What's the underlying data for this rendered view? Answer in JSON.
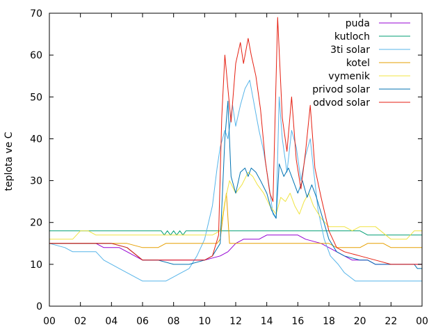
{
  "chart_data": {
    "type": "line",
    "title": "",
    "xlabel": "",
    "ylabel": "teplota ve C",
    "xlim": [
      0,
      24
    ],
    "ylim": [
      0,
      70
    ],
    "x_tick_labels": [
      "00",
      "02",
      "04",
      "06",
      "08",
      "10",
      "12",
      "14",
      "16",
      "18",
      "20",
      "22",
      "00"
    ],
    "y_ticks": [
      0,
      10,
      20,
      30,
      40,
      50,
      60,
      70
    ],
    "grid": false,
    "legend_position": "top-right",
    "series": [
      {
        "name": "puda",
        "color": "#9400d3",
        "points": [
          [
            0,
            15
          ],
          [
            3,
            15
          ],
          [
            3.5,
            14
          ],
          [
            4.5,
            14
          ],
          [
            5,
            13
          ],
          [
            5.5,
            12
          ],
          [
            6,
            11
          ],
          [
            9,
            11
          ],
          [
            10,
            11
          ],
          [
            11,
            12
          ],
          [
            11.5,
            13
          ],
          [
            12,
            15
          ],
          [
            12.5,
            16
          ],
          [
            13.5,
            16
          ],
          [
            14,
            17
          ],
          [
            16,
            17
          ],
          [
            16.5,
            16
          ],
          [
            17.5,
            15
          ],
          [
            18,
            14
          ],
          [
            18.5,
            13
          ],
          [
            19,
            12
          ],
          [
            19.5,
            11
          ],
          [
            20.5,
            11
          ],
          [
            21,
            10
          ],
          [
            24,
            10
          ]
        ]
      },
      {
        "name": "kutloch",
        "color": "#009e73",
        "points": [
          [
            0,
            18
          ],
          [
            7.2,
            18
          ],
          [
            7.4,
            17
          ],
          [
            7.6,
            18
          ],
          [
            7.8,
            17
          ],
          [
            8,
            18
          ],
          [
            8.2,
            17
          ],
          [
            8.4,
            18
          ],
          [
            8.6,
            17
          ],
          [
            8.8,
            18
          ],
          [
            20,
            18
          ],
          [
            20.5,
            17
          ],
          [
            24,
            17
          ]
        ]
      },
      {
        "name": "3ti solar",
        "color": "#56b4e9",
        "points": [
          [
            0,
            15
          ],
          [
            1,
            14
          ],
          [
            1.5,
            13
          ],
          [
            3,
            13
          ],
          [
            3.5,
            11
          ],
          [
            4.5,
            9
          ],
          [
            5,
            8
          ],
          [
            6,
            6
          ],
          [
            7.5,
            6
          ],
          [
            8,
            7
          ],
          [
            9,
            9
          ],
          [
            9.5,
            12
          ],
          [
            10,
            16
          ],
          [
            10.5,
            24
          ],
          [
            10.8,
            33
          ],
          [
            11,
            38
          ],
          [
            11.3,
            42
          ],
          [
            11.5,
            40
          ],
          [
            11.8,
            48
          ],
          [
            12,
            43
          ],
          [
            12.3,
            48
          ],
          [
            12.6,
            52
          ],
          [
            12.9,
            54
          ],
          [
            13.1,
            50
          ],
          [
            13.3,
            46
          ],
          [
            13.5,
            42
          ],
          [
            13.8,
            37
          ],
          [
            14.1,
            30
          ],
          [
            14.4,
            22
          ],
          [
            14.6,
            21
          ],
          [
            14.8,
            50
          ],
          [
            15,
            40
          ],
          [
            15.3,
            32
          ],
          [
            15.6,
            42
          ],
          [
            15.9,
            38
          ],
          [
            16.2,
            30
          ],
          [
            16.5,
            36
          ],
          [
            16.8,
            40
          ],
          [
            17,
            33
          ],
          [
            17.3,
            23
          ],
          [
            17.7,
            16
          ],
          [
            18.1,
            12
          ],
          [
            18.6,
            10
          ],
          [
            19,
            8
          ],
          [
            19.7,
            6
          ],
          [
            24,
            6
          ]
        ]
      },
      {
        "name": "kotel",
        "color": "#e69f00",
        "points": [
          [
            0,
            15
          ],
          [
            3,
            15
          ],
          [
            3.5,
            15
          ],
          [
            5,
            15
          ],
          [
            6,
            14
          ],
          [
            7,
            14
          ],
          [
            7.5,
            15
          ],
          [
            10.8,
            15
          ],
          [
            11,
            16
          ],
          [
            11.2,
            22
          ],
          [
            11.4,
            27
          ],
          [
            11.6,
            15
          ],
          [
            13,
            15
          ],
          [
            15,
            15
          ],
          [
            16.5,
            15
          ],
          [
            18,
            15
          ],
          [
            18.5,
            14
          ],
          [
            20,
            14
          ],
          [
            20.5,
            15
          ],
          [
            21.5,
            15
          ],
          [
            22,
            14
          ],
          [
            24,
            14
          ]
        ]
      },
      {
        "name": "vymenik",
        "color": "#f0e442",
        "points": [
          [
            0,
            16
          ],
          [
            1.5,
            16
          ],
          [
            2,
            18
          ],
          [
            2.5,
            18
          ],
          [
            3,
            17
          ],
          [
            6,
            17
          ],
          [
            7,
            17
          ],
          [
            9.5,
            17
          ],
          [
            10.5,
            17
          ],
          [
            11,
            18
          ],
          [
            11.3,
            25
          ],
          [
            11.6,
            30
          ],
          [
            12,
            27
          ],
          [
            12.4,
            29
          ],
          [
            12.8,
            32
          ],
          [
            13.1,
            31
          ],
          [
            13.4,
            29
          ],
          [
            13.8,
            27
          ],
          [
            14.2,
            24
          ],
          [
            14.6,
            22
          ],
          [
            14.9,
            26
          ],
          [
            15.2,
            25
          ],
          [
            15.5,
            27
          ],
          [
            15.8,
            24
          ],
          [
            16.1,
            22
          ],
          [
            16.4,
            25
          ],
          [
            16.7,
            27
          ],
          [
            17,
            24
          ],
          [
            17.5,
            21
          ],
          [
            18,
            19
          ],
          [
            19,
            19
          ],
          [
            19.5,
            18
          ],
          [
            20,
            19
          ],
          [
            21,
            19
          ],
          [
            22,
            16
          ],
          [
            23,
            16
          ],
          [
            23.5,
            18
          ],
          [
            24,
            18
          ]
        ]
      },
      {
        "name": "privod solar",
        "color": "#0072b2",
        "points": [
          [
            0,
            15
          ],
          [
            3,
            15
          ],
          [
            4,
            15
          ],
          [
            5,
            14
          ],
          [
            6,
            11
          ],
          [
            7,
            11
          ],
          [
            8,
            10
          ],
          [
            9,
            10
          ],
          [
            10,
            11
          ],
          [
            10.5,
            12
          ],
          [
            11,
            15
          ],
          [
            11.3,
            40
          ],
          [
            11.5,
            49
          ],
          [
            11.7,
            31
          ],
          [
            12,
            27
          ],
          [
            12.3,
            32
          ],
          [
            12.6,
            33
          ],
          [
            12.8,
            31
          ],
          [
            13,
            33
          ],
          [
            13.3,
            32
          ],
          [
            13.6,
            30
          ],
          [
            14,
            27
          ],
          [
            14.3,
            23
          ],
          [
            14.6,
            21
          ],
          [
            14.8,
            34
          ],
          [
            15.1,
            31
          ],
          [
            15.4,
            33
          ],
          [
            15.7,
            30
          ],
          [
            16,
            27
          ],
          [
            16.3,
            30
          ],
          [
            16.6,
            26
          ],
          [
            16.9,
            29
          ],
          [
            17.2,
            26
          ],
          [
            17.6,
            21
          ],
          [
            18,
            16
          ],
          [
            18.5,
            13
          ],
          [
            19,
            12
          ],
          [
            20,
            11
          ],
          [
            20.5,
            11
          ],
          [
            21,
            10
          ],
          [
            23.5,
            10
          ],
          [
            23.7,
            9
          ],
          [
            24,
            9
          ]
        ]
      },
      {
        "name": "odvod solar",
        "color": "#e51e10",
        "points": [
          [
            0,
            15
          ],
          [
            3,
            15
          ],
          [
            4,
            15
          ],
          [
            5,
            14
          ],
          [
            6,
            11
          ],
          [
            7,
            11
          ],
          [
            8,
            11
          ],
          [
            9,
            11
          ],
          [
            10,
            11
          ],
          [
            10.5,
            12
          ],
          [
            10.9,
            17
          ],
          [
            11.1,
            45
          ],
          [
            11.3,
            60
          ],
          [
            11.5,
            52
          ],
          [
            11.7,
            44
          ],
          [
            12,
            58
          ],
          [
            12.3,
            63
          ],
          [
            12.5,
            58
          ],
          [
            12.8,
            64
          ],
          [
            13,
            60
          ],
          [
            13.3,
            55
          ],
          [
            13.6,
            47
          ],
          [
            13.9,
            35
          ],
          [
            14.2,
            27
          ],
          [
            14.4,
            25
          ],
          [
            14.7,
            69
          ],
          [
            15,
            45
          ],
          [
            15.3,
            37
          ],
          [
            15.6,
            50
          ],
          [
            15.9,
            35
          ],
          [
            16.2,
            28
          ],
          [
            16.5,
            37
          ],
          [
            16.8,
            48
          ],
          [
            17.1,
            33
          ],
          [
            17.5,
            26
          ],
          [
            18,
            18
          ],
          [
            18.5,
            14
          ],
          [
            19,
            13
          ],
          [
            20,
            12
          ],
          [
            21,
            11
          ],
          [
            22,
            10
          ],
          [
            24,
            10
          ]
        ]
      }
    ]
  }
}
